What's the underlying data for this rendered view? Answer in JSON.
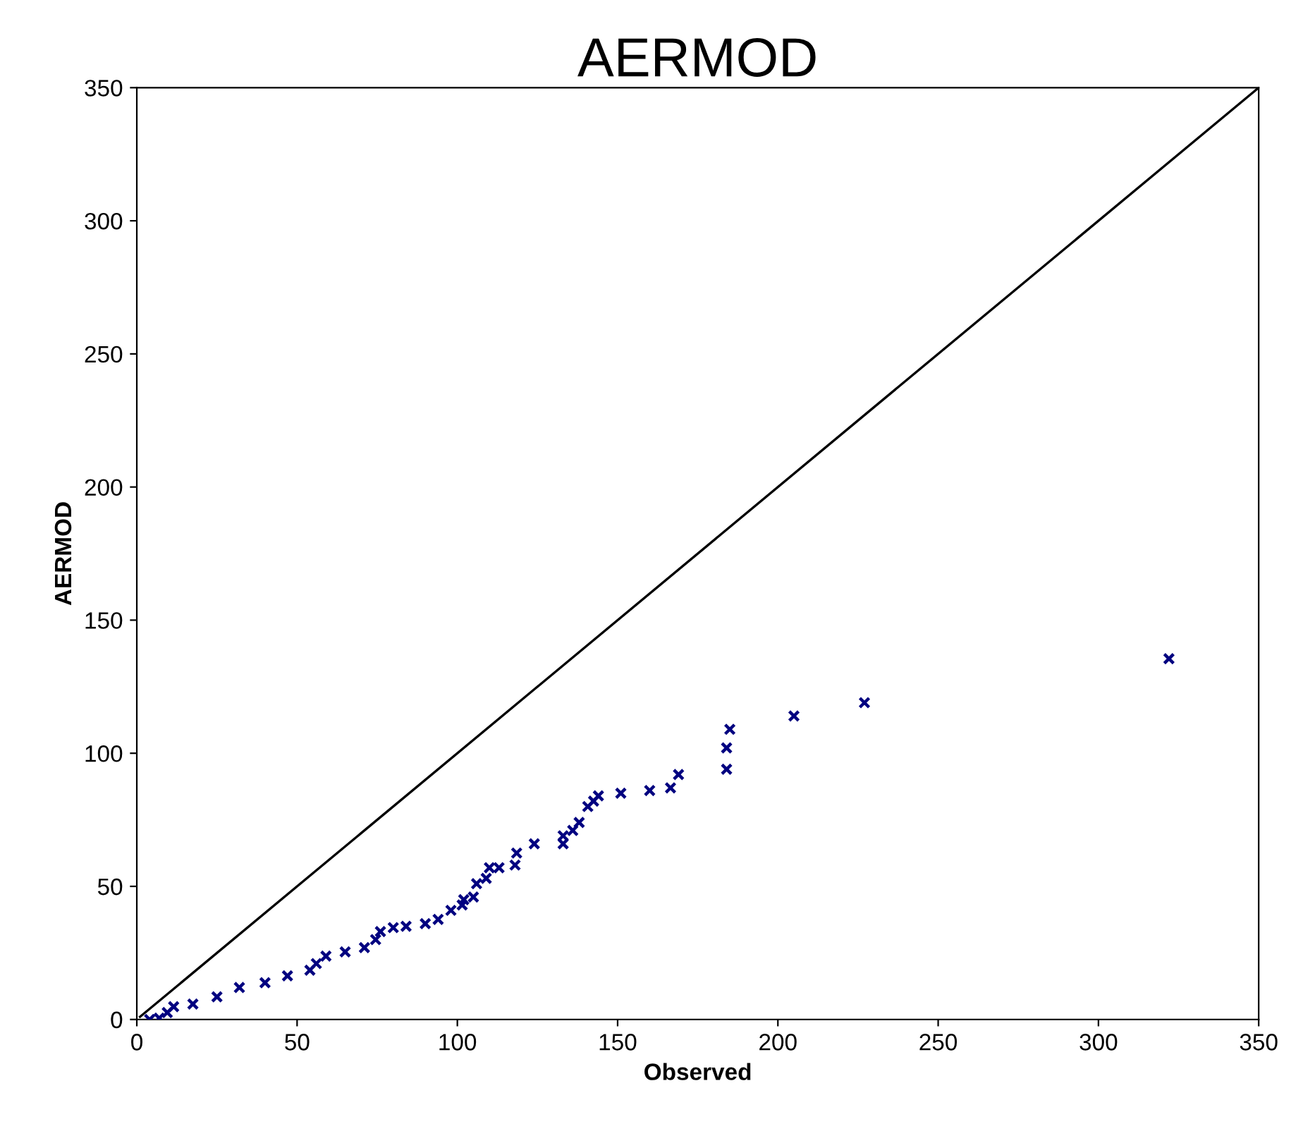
{
  "chart_data": {
    "type": "scatter",
    "title": "AERMOD",
    "xlabel": "Observed",
    "ylabel": "AERMOD",
    "xlim": [
      0,
      350
    ],
    "ylim": [
      0,
      350
    ],
    "xticks": [
      0,
      50,
      100,
      150,
      200,
      250,
      300,
      350
    ],
    "yticks": [
      0,
      50,
      100,
      150,
      200,
      250,
      300,
      350
    ],
    "grid": false,
    "marker": "cross",
    "series": [
      {
        "color": "#000080",
        "x": [
          4,
          7,
          9.5,
          11.5,
          17.5,
          25,
          32,
          40,
          47,
          54,
          56,
          59,
          65,
          71,
          74.5,
          76,
          80,
          84,
          90,
          94,
          98,
          101.5,
          102,
          105,
          106,
          109,
          110,
          113,
          118,
          118.5,
          124,
          133,
          133,
          136,
          138,
          140.7,
          142.5,
          144,
          151,
          160,
          166.5,
          169,
          184,
          184,
          185,
          205,
          227,
          322
        ],
        "values": [
          0,
          0.5,
          2.6,
          4.8,
          5.8,
          8.5,
          12,
          13.8,
          16.4,
          18.5,
          21,
          23.8,
          25.4,
          27,
          30,
          33,
          34.5,
          35,
          36,
          37.6,
          41,
          43,
          45,
          46,
          51,
          53,
          57,
          57,
          58,
          62.5,
          66,
          66,
          69,
          71,
          74,
          80,
          82,
          84,
          85,
          86,
          87,
          92,
          94,
          102,
          109,
          114,
          119,
          135.5
        ]
      },
      {
        "type": "line",
        "color": "#000000",
        "line_style": "solid",
        "marker": "none",
        "x": [
          1,
          350
        ],
        "values": [
          1,
          350
        ]
      }
    ]
  }
}
